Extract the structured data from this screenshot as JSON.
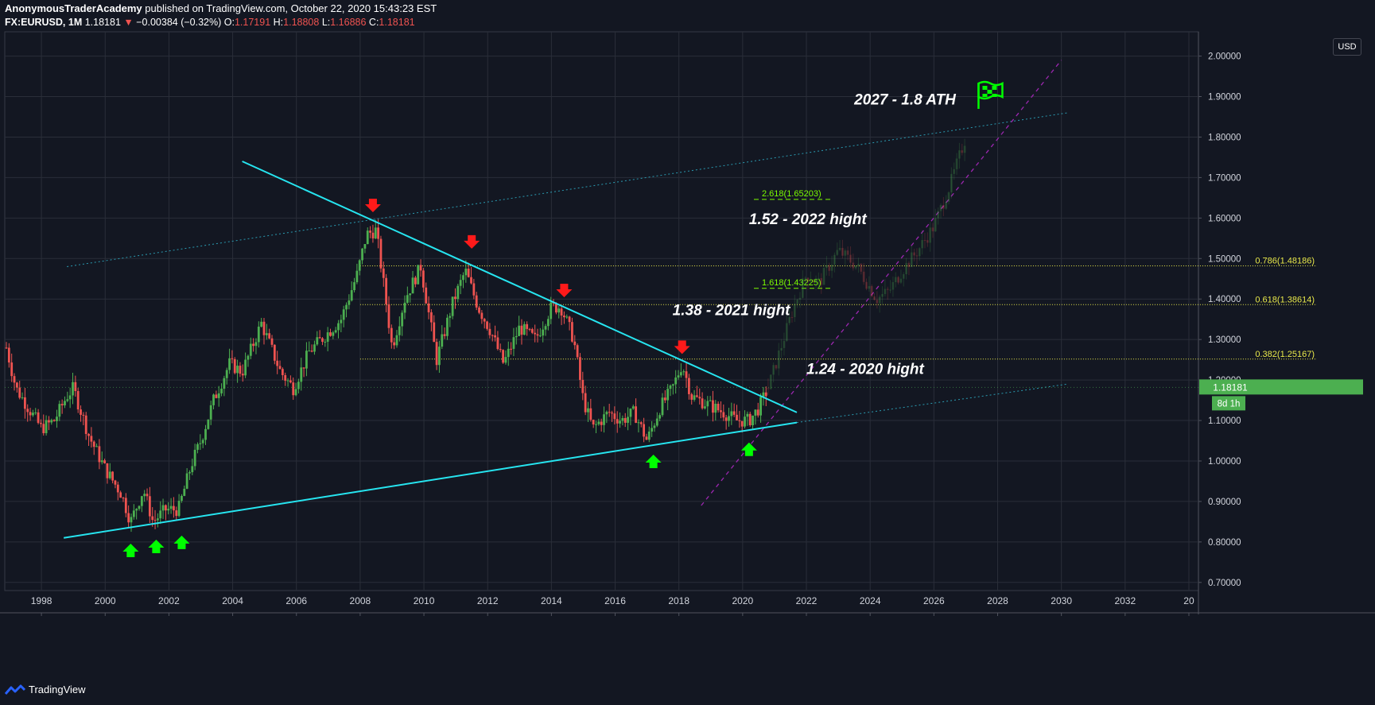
{
  "header": {
    "author": "AnonymousTraderAcademy",
    "published": "published on TradingView.com, October 22, 2020 15:43:23 EST",
    "symbol": "FX:EURUSD, 1M",
    "last": "1.18181",
    "change_arrow": "▼",
    "change": "−0.00384 (−0.32%)",
    "o_label": "O:",
    "o_value": "1.17191",
    "h_label": "H:",
    "h_value": "1.18808",
    "l_label": "L:",
    "l_value": "1.16886",
    "c_label": "C:",
    "c_value": "1.18181"
  },
  "currency_button": "USD",
  "footer": {
    "brand": "TradingView",
    "logo_icon": "tradingview-logo-icon"
  },
  "colors": {
    "background": "#131722",
    "grid": "#2a2e39",
    "up": "#4caf50",
    "down": "#ef5350",
    "trendline": "#26e5f0",
    "fib": "#e8e84a",
    "fib_ext": "#7cfc00",
    "arrow_up": "#00ff00",
    "arrow_down": "#ff1a1a",
    "price_tag": "#4caf50",
    "projection": "#9c27b0"
  },
  "chart_data": {
    "type": "candlestick",
    "x_axis": {
      "ticks": [
        "1998",
        "2000",
        "2002",
        "2004",
        "2006",
        "2008",
        "2010",
        "2012",
        "2014",
        "2016",
        "2018",
        "2020",
        "2022",
        "2024",
        "2026",
        "2028",
        "2030",
        "2032",
        "20"
      ],
      "range": [
        1996.85,
        2034.3
      ]
    },
    "y_axis": {
      "ticks": [
        "2.00000",
        "1.90000",
        "1.80000",
        "1.70000",
        "1.60000",
        "1.50000",
        "1.40000",
        "1.30000",
        "1.20000",
        "1.10000",
        "1.00000",
        "0.90000",
        "0.80000",
        "0.70000"
      ],
      "range": [
        0.68,
        2.06
      ]
    },
    "price_tag": {
      "value": 1.18181,
      "label": "1.18181",
      "countdown": "8d 1h"
    },
    "price_path": [
      [
        1996.9,
        1.28
      ],
      [
        1997.2,
        1.18
      ],
      [
        1997.6,
        1.13
      ],
      [
        1998.0,
        1.08
      ],
      [
        1998.4,
        1.1
      ],
      [
        1998.8,
        1.16
      ],
      [
        1999.0,
        1.18
      ],
      [
        1999.5,
        1.06
      ],
      [
        2000.0,
        0.98
      ],
      [
        2000.5,
        0.92
      ],
      [
        2000.8,
        0.85
      ],
      [
        2001.2,
        0.93
      ],
      [
        2001.5,
        0.85
      ],
      [
        2001.9,
        0.88
      ],
      [
        2002.3,
        0.88
      ],
      [
        2002.7,
        0.99
      ],
      [
        2003.0,
        1.05
      ],
      [
        2003.4,
        1.15
      ],
      [
        2003.9,
        1.24
      ],
      [
        2004.3,
        1.22
      ],
      [
        2004.9,
        1.34
      ],
      [
        2005.5,
        1.22
      ],
      [
        2005.9,
        1.18
      ],
      [
        2006.4,
        1.27
      ],
      [
        2006.9,
        1.31
      ],
      [
        2007.4,
        1.35
      ],
      [
        2007.9,
        1.46
      ],
      [
        2008.2,
        1.56
      ],
      [
        2008.5,
        1.57
      ],
      [
        2008.8,
        1.4
      ],
      [
        2009.0,
        1.28
      ],
      [
        2009.4,
        1.4
      ],
      [
        2009.9,
        1.48
      ],
      [
        2010.4,
        1.25
      ],
      [
        2010.9,
        1.39
      ],
      [
        2011.3,
        1.47
      ],
      [
        2011.7,
        1.38
      ],
      [
        2012.1,
        1.32
      ],
      [
        2012.5,
        1.24
      ],
      [
        2013.0,
        1.33
      ],
      [
        2013.5,
        1.3
      ],
      [
        2014.0,
        1.38
      ],
      [
        2014.3,
        1.38
      ],
      [
        2014.7,
        1.3
      ],
      [
        2015.0,
        1.15
      ],
      [
        2015.3,
        1.08
      ],
      [
        2015.8,
        1.12
      ],
      [
        2016.2,
        1.1
      ],
      [
        2016.6,
        1.12
      ],
      [
        2017.0,
        1.05
      ],
      [
        2017.4,
        1.13
      ],
      [
        2017.8,
        1.18
      ],
      [
        2018.1,
        1.24
      ],
      [
        2018.4,
        1.16
      ],
      [
        2018.9,
        1.14
      ],
      [
        2019.4,
        1.12
      ],
      [
        2019.8,
        1.1
      ],
      [
        2020.2,
        1.1
      ],
      [
        2020.5,
        1.13
      ],
      [
        2020.8,
        1.18
      ]
    ],
    "projection_path": [
      [
        2020.8,
        1.18
      ],
      [
        2021.2,
        1.28
      ],
      [
        2021.6,
        1.38
      ],
      [
        2022.0,
        1.46
      ],
      [
        2022.4,
        1.44
      ],
      [
        2023.0,
        1.52
      ],
      [
        2023.6,
        1.48
      ],
      [
        2024.2,
        1.4
      ],
      [
        2024.6,
        1.42
      ],
      [
        2025.0,
        1.47
      ],
      [
        2025.5,
        1.52
      ],
      [
        2026.0,
        1.58
      ],
      [
        2026.5,
        1.68
      ],
      [
        2027.0,
        1.8
      ]
    ],
    "fib_levels": [
      {
        "label": "0.786(1.48186)",
        "value": 1.48186
      },
      {
        "label": "0.618(1.38614)",
        "value": 1.38614
      },
      {
        "label": "0.382(1.25167)",
        "value": 1.25167
      }
    ],
    "fib_extensions": [
      {
        "label": "2.618(1.65203)",
        "value": 1.65203
      },
      {
        "label": "1.618(1.43225)",
        "value": 1.43225
      }
    ],
    "annotations": [
      {
        "text": "2027 - 1.8 ATH",
        "x": 2023.5,
        "y": 1.88
      },
      {
        "text": "1.52 - 2022 hight",
        "x": 2020.2,
        "y": 1.585
      },
      {
        "text": "1.38 - 2021 hight",
        "x": 2017.8,
        "y": 1.36
      },
      {
        "text": "1.24 - 2020 hight",
        "x": 2022.0,
        "y": 1.215
      }
    ],
    "trendlines": {
      "descending": [
        [
          2004.3,
          1.74
        ],
        [
          2021.7,
          1.12
        ]
      ],
      "support": [
        [
          1998.7,
          0.81
        ],
        [
          2021.7,
          1.095
        ]
      ],
      "upper_channel": [
        [
          1998.8,
          1.48
        ],
        [
          2030.2,
          1.86
        ]
      ],
      "lower_channel": [
        [
          2021.7,
          1.095
        ],
        [
          2030.2,
          1.19
        ]
      ],
      "projection": [
        [
          2018.7,
          0.89
        ],
        [
          2030.0,
          1.99
        ]
      ]
    },
    "arrows_down": [
      [
        2008.4,
        1.63
      ],
      [
        2011.5,
        1.54
      ],
      [
        2014.4,
        1.42
      ],
      [
        2018.1,
        1.28
      ]
    ],
    "arrows_up": [
      [
        2000.8,
        0.78
      ],
      [
        2001.6,
        0.79
      ],
      [
        2002.4,
        0.8
      ],
      [
        2017.2,
        1.0
      ],
      [
        2020.2,
        1.03
      ]
    ],
    "flag": {
      "x": 2027.4,
      "y": 1.905,
      "icon": "flag-icon"
    }
  }
}
